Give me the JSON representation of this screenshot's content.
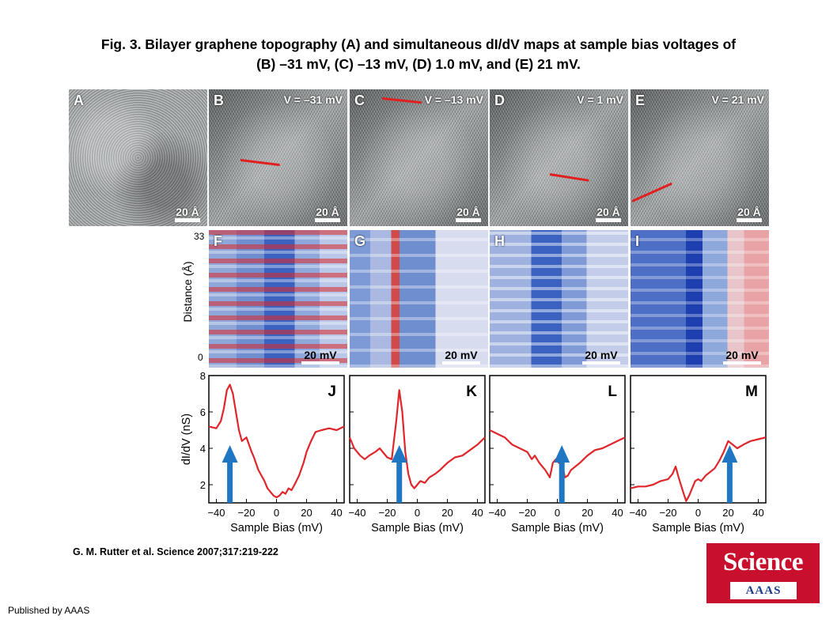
{
  "header": {
    "title_line1": "Fig. 3. Bilayer graphene topography (A) and simultaneous dI/dV maps at sample bias voltages of",
    "title_line2": "(B) –31 mV, (C) –13 mV, (D) 1.0 mV, and (E) 21 mV."
  },
  "stm_panels": [
    {
      "letter": "A",
      "voltage": "",
      "scale": "20 Å"
    },
    {
      "letter": "B",
      "voltage": "V = –31 mV",
      "scale": "20 Å"
    },
    {
      "letter": "C",
      "voltage": "V = –13 mV",
      "scale": "20 Å"
    },
    {
      "letter": "D",
      "voltage": "V = 1 mV",
      "scale": "20 Å"
    },
    {
      "letter": "E",
      "voltage": "V = 21 mV",
      "scale": "20 Å"
    }
  ],
  "maps": {
    "ylabel": "Distance (Å)",
    "ytick_top": "33",
    "ytick_bottom": "0",
    "panels": [
      {
        "letter": "F",
        "scale": "20 mV"
      },
      {
        "letter": "G",
        "scale": "20 mV"
      },
      {
        "letter": "H",
        "scale": "20 mV"
      },
      {
        "letter": "I",
        "scale": "20 mV"
      }
    ]
  },
  "chart_data": [
    {
      "type": "line",
      "panel": "J",
      "color": "#e0262b",
      "arrow_color": "#1f77c4",
      "xlabel": "Sample Bias (mV)",
      "ylabel": "dI/dV (nS)",
      "xlim": [
        -45,
        45
      ],
      "ylim": [
        1,
        8
      ],
      "xticks": [
        -40,
        -20,
        0,
        20,
        40
      ],
      "yticks": [
        2,
        4,
        6,
        8
      ],
      "arrow_x": -31,
      "x": [
        -45,
        -40,
        -37,
        -35,
        -33,
        -31,
        -29,
        -27,
        -25,
        -23,
        -20,
        -17,
        -15,
        -12,
        -10,
        -8,
        -6,
        -4,
        -2,
        0,
        2,
        4,
        6,
        8,
        10,
        12,
        15,
        18,
        20,
        23,
        26,
        30,
        35,
        40,
        45
      ],
      "y": [
        5.2,
        5.1,
        5.5,
        6.2,
        7.2,
        7.5,
        7.0,
        6.0,
        5.0,
        4.4,
        4.6,
        3.9,
        3.5,
        2.8,
        2.5,
        2.2,
        1.8,
        1.6,
        1.4,
        1.3,
        1.4,
        1.6,
        1.5,
        1.8,
        1.7,
        2.0,
        2.5,
        3.2,
        3.8,
        4.4,
        4.9,
        5.0,
        5.1,
        5.0,
        5.2
      ]
    },
    {
      "type": "line",
      "panel": "K",
      "color": "#e0262b",
      "arrow_color": "#1f77c4",
      "xlabel": "Sample Bias (mV)",
      "ylabel": "",
      "xlim": [
        -45,
        45
      ],
      "ylim": [
        1,
        8
      ],
      "xticks": [
        -40,
        -20,
        0,
        20,
        40
      ],
      "yticks": [
        2,
        4,
        6,
        8
      ],
      "arrow_x": -12,
      "x": [
        -45,
        -42,
        -38,
        -35,
        -32,
        -28,
        -25,
        -20,
        -17,
        -14,
        -12,
        -10,
        -8,
        -6,
        -4,
        -2,
        0,
        2,
        5,
        8,
        12,
        15,
        20,
        25,
        30,
        35,
        40,
        45
      ],
      "y": [
        4.6,
        4.0,
        3.6,
        3.4,
        3.6,
        3.8,
        4.0,
        3.5,
        3.4,
        5.5,
        7.2,
        6.0,
        3.8,
        2.6,
        2.0,
        1.8,
        2.0,
        2.2,
        2.1,
        2.4,
        2.6,
        2.8,
        3.2,
        3.5,
        3.6,
        3.9,
        4.2,
        4.6
      ]
    },
    {
      "type": "line",
      "panel": "L",
      "color": "#e0262b",
      "arrow_color": "#1f77c4",
      "xlabel": "Sample Bias (mV)",
      "ylabel": "",
      "xlim": [
        -45,
        45
      ],
      "ylim": [
        1,
        8
      ],
      "xticks": [
        -40,
        -20,
        0,
        20,
        40
      ],
      "yticks": [
        2,
        4,
        6,
        8
      ],
      "arrow_x": 3,
      "x": [
        -45,
        -40,
        -35,
        -30,
        -25,
        -20,
        -17,
        -15,
        -12,
        -10,
        -8,
        -5,
        -3,
        -1,
        1,
        3,
        5,
        7,
        9,
        12,
        15,
        20,
        25,
        30,
        35,
        40,
        45
      ],
      "y": [
        5.0,
        4.8,
        4.6,
        4.2,
        4.0,
        3.8,
        3.4,
        3.6,
        3.2,
        3.0,
        2.8,
        2.4,
        3.2,
        3.4,
        3.2,
        3.3,
        2.4,
        2.5,
        2.8,
        3.0,
        3.2,
        3.6,
        3.9,
        4.0,
        4.2,
        4.4,
        4.6
      ]
    },
    {
      "type": "line",
      "panel": "M",
      "color": "#e0262b",
      "arrow_color": "#1f77c4",
      "xlabel": "Sample Bias (mV)",
      "ylabel": "",
      "xlim": [
        -45,
        45
      ],
      "ylim": [
        1,
        8
      ],
      "xticks": [
        -40,
        -20,
        0,
        20,
        40
      ],
      "yticks": [
        2,
        4,
        6,
        8
      ],
      "arrow_x": 21,
      "x": [
        -45,
        -40,
        -35,
        -30,
        -25,
        -20,
        -17,
        -15,
        -13,
        -10,
        -8,
        -6,
        -4,
        -2,
        0,
        2,
        5,
        8,
        11,
        14,
        17,
        20,
        23,
        26,
        30,
        35,
        40,
        45
      ],
      "y": [
        1.8,
        1.9,
        1.9,
        2.0,
        2.2,
        2.3,
        2.6,
        3.0,
        2.4,
        1.6,
        1.1,
        1.4,
        1.8,
        2.2,
        2.3,
        2.2,
        2.5,
        2.7,
        2.9,
        3.3,
        3.8,
        4.4,
        4.2,
        4.0,
        4.2,
        4.4,
        4.5,
        4.6
      ]
    }
  ],
  "citation": "G. M. Rutter et al. Science 2007;317:219-222",
  "publisher": "Published by AAAS",
  "logo": {
    "word": "Science",
    "sub": "AAAS"
  }
}
